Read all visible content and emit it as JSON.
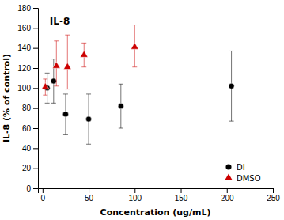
{
  "chart_data": {
    "type": "scatter",
    "title": "IL-8",
    "x_label": "Concentration (ug/mL)",
    "y_label": "IL-8 (% of control)",
    "series": [
      {
        "name": "DI",
        "color": "#000000",
        "marker": "circle",
        "x": [
          5,
          12,
          25,
          50,
          85,
          205
        ],
        "values": [
          100,
          107,
          74,
          69,
          82,
          102
        ],
        "error_low": [
          15,
          22,
          20,
          25,
          22,
          35
        ],
        "error_high": [
          15,
          22,
          20,
          25,
          22,
          35
        ]
      },
      {
        "name": "DMSO",
        "color": "#cc0000",
        "marker": "triangle",
        "x": [
          3,
          15,
          27,
          45,
          100
        ],
        "values": [
          101,
          122,
          121,
          133,
          141
        ],
        "error_low": [
          8,
          20,
          22,
          12,
          20
        ],
        "error_high": [
          8,
          25,
          32,
          12,
          22
        ]
      }
    ],
    "xlim": [
      -5,
      250
    ],
    "ylim": [
      0,
      180
    ],
    "xticks": [
      0,
      50,
      100,
      150,
      200,
      250
    ],
    "yticks": [
      0,
      20,
      40,
      60,
      80,
      100,
      120,
      140,
      160,
      180
    ],
    "grid": false,
    "legend": "lower right"
  }
}
